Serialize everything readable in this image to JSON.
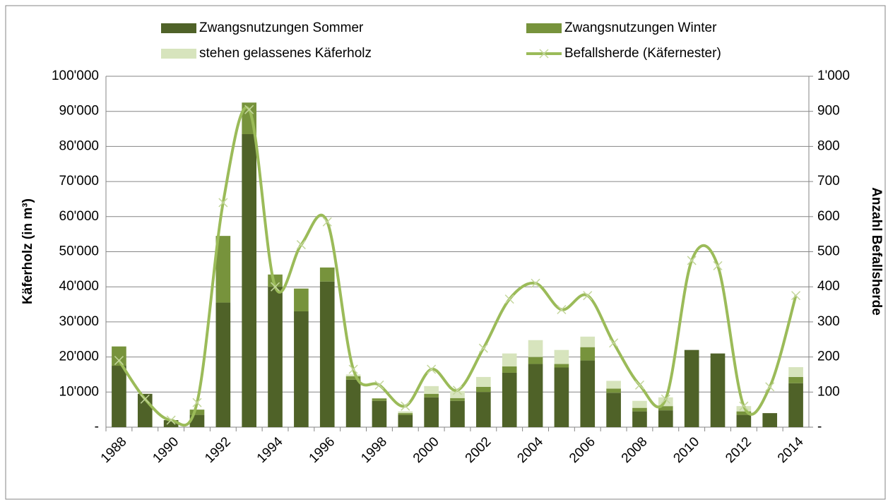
{
  "chart_data": {
    "type": "bar",
    "stacked": true,
    "y_label": "Käferholz (in m³)",
    "y2_label": "Anzahl Befallsherde",
    "categories": [
      "1988",
      null,
      "1990",
      null,
      "1992",
      null,
      "1994",
      null,
      "1996",
      null,
      "1998",
      null,
      "2000",
      null,
      "2002",
      null,
      "2004",
      null,
      "2006",
      null,
      "2008",
      null,
      "2010",
      null,
      "2012",
      null,
      "2014"
    ],
    "series": [
      {
        "name": "Zwangsnutzungen Sommer",
        "color": "#4f6228",
        "values": [
          17500,
          9500,
          2000,
          3500,
          35500,
          83500,
          40000,
          33000,
          41500,
          13500,
          7500,
          3500,
          8500,
          7500,
          10000,
          15500,
          18000,
          17000,
          19000,
          9800,
          4500,
          4800,
          22000,
          21000,
          3500,
          4000,
          12500
        ]
      },
      {
        "name": "Zwangsnutzungen Winter",
        "color": "#77933c",
        "values": [
          5500,
          0,
          0,
          1500,
          19000,
          9000,
          3500,
          6500,
          4000,
          1000,
          700,
          500,
          1000,
          800,
          1500,
          1800,
          2000,
          1000,
          3800,
          1200,
          1000,
          1200,
          0,
          0,
          1000,
          0,
          1800
        ]
      },
      {
        "name": "stehen gelassenes Käferholz",
        "color": "#d7e4bd",
        "values": [
          0,
          0,
          0,
          0,
          0,
          0,
          0,
          0,
          0,
          500,
          0,
          500,
          2200,
          2000,
          2800,
          3700,
          4800,
          4000,
          3000,
          2200,
          2000,
          2500,
          0,
          0,
          1500,
          0,
          2800
        ]
      },
      {
        "name": "Befallsherde (Käfernester)",
        "color": "#9bbb59",
        "marker_color": "#c3d69b",
        "type": "line",
        "axis": "y2",
        "values": [
          190,
          80,
          20,
          70,
          640,
          905,
          400,
          520,
          585,
          165,
          120,
          60,
          165,
          105,
          225,
          365,
          410,
          335,
          375,
          240,
          120,
          80,
          475,
          460,
          60,
          115,
          375
        ]
      }
    ],
    "ylim": [
      0,
      100000
    ],
    "yticks": [
      {
        "value": 0,
        "label": "-"
      },
      {
        "value": 10000,
        "label": "10'000"
      },
      {
        "value": 20000,
        "label": "20'000"
      },
      {
        "value": 30000,
        "label": "30'000"
      },
      {
        "value": 40000,
        "label": "40'000"
      },
      {
        "value": 50000,
        "label": "50'000"
      },
      {
        "value": 60000,
        "label": "60'000"
      },
      {
        "value": 70000,
        "label": "70'000"
      },
      {
        "value": 80000,
        "label": "80'000"
      },
      {
        "value": 90000,
        "label": "90'000"
      },
      {
        "value": 100000,
        "label": "100'000"
      }
    ],
    "y2lim": [
      0,
      1000
    ],
    "y2ticks": [
      {
        "value": 0,
        "label": "-"
      },
      100,
      200,
      300,
      400,
      500,
      600,
      700,
      800,
      900,
      {
        "value": 1000,
        "label": "1'000"
      }
    ],
    "grid": true,
    "legend": "top"
  }
}
